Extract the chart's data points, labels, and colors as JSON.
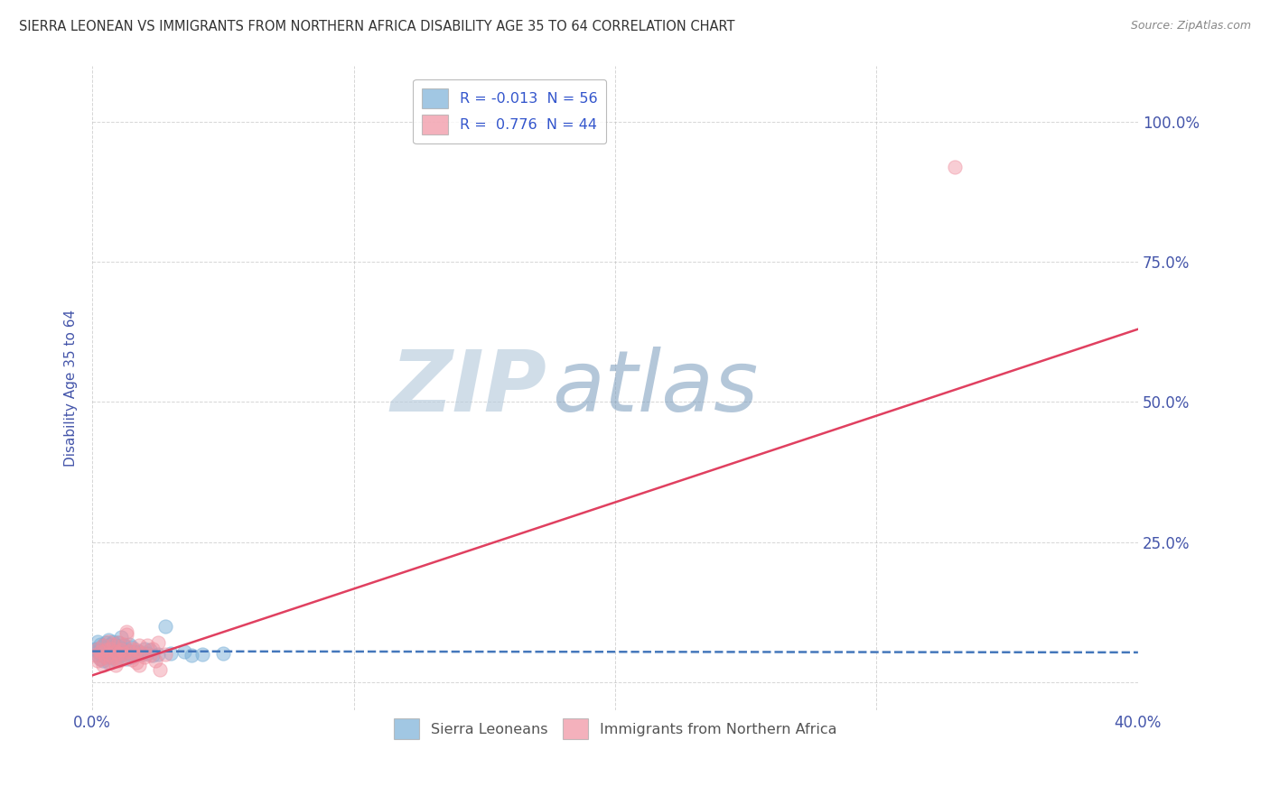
{
  "title": "SIERRA LEONEAN VS IMMIGRANTS FROM NORTHERN AFRICA DISABILITY AGE 35 TO 64 CORRELATION CHART",
  "source": "Source: ZipAtlas.com",
  "ylabel": "Disability Age 35 to 64",
  "xlim": [
    0.0,
    0.4
  ],
  "ylim": [
    -0.05,
    1.1
  ],
  "ytick_vals": [
    0.0,
    0.25,
    0.5,
    0.75,
    1.0
  ],
  "ytick_labels_right": [
    "",
    "25.0%",
    "50.0%",
    "75.0%",
    "100.0%"
  ],
  "xtick_vals": [
    0.0,
    0.1,
    0.2,
    0.3,
    0.4
  ],
  "xtick_labels": [
    "0.0%",
    "",
    "",
    "",
    "40.0%"
  ],
  "legend_label_blue": "R = -0.013  N = 56",
  "legend_label_pink": "R =  0.776  N = 44",
  "watermark_zip": "ZIP",
  "watermark_atlas": "atlas",
  "blue_scatter": [
    [
      0.001,
      0.06
    ],
    [
      0.001,
      0.058
    ],
    [
      0.002,
      0.072
    ],
    [
      0.002,
      0.055
    ],
    [
      0.002,
      0.048
    ],
    [
      0.003,
      0.068
    ],
    [
      0.003,
      0.05
    ],
    [
      0.003,
      0.042
    ],
    [
      0.004,
      0.065
    ],
    [
      0.004,
      0.055
    ],
    [
      0.004,
      0.038
    ],
    [
      0.005,
      0.07
    ],
    [
      0.005,
      0.058
    ],
    [
      0.005,
      0.045
    ],
    [
      0.006,
      0.075
    ],
    [
      0.006,
      0.06
    ],
    [
      0.006,
      0.05
    ],
    [
      0.006,
      0.035
    ],
    [
      0.007,
      0.068
    ],
    [
      0.007,
      0.055
    ],
    [
      0.007,
      0.045
    ],
    [
      0.008,
      0.072
    ],
    [
      0.008,
      0.058
    ],
    [
      0.008,
      0.048
    ],
    [
      0.009,
      0.065
    ],
    [
      0.009,
      0.052
    ],
    [
      0.009,
      0.04
    ],
    [
      0.01,
      0.07
    ],
    [
      0.01,
      0.058
    ],
    [
      0.01,
      0.045
    ],
    [
      0.011,
      0.08
    ],
    [
      0.011,
      0.06
    ],
    [
      0.011,
      0.048
    ],
    [
      0.012,
      0.065
    ],
    [
      0.012,
      0.055
    ],
    [
      0.013,
      0.058
    ],
    [
      0.013,
      0.042
    ],
    [
      0.014,
      0.068
    ],
    [
      0.014,
      0.052
    ],
    [
      0.015,
      0.062
    ],
    [
      0.015,
      0.045
    ],
    [
      0.016,
      0.055
    ],
    [
      0.017,
      0.048
    ],
    [
      0.018,
      0.055
    ],
    [
      0.019,
      0.05
    ],
    [
      0.02,
      0.06
    ],
    [
      0.021,
      0.052
    ],
    [
      0.022,
      0.058
    ],
    [
      0.023,
      0.048
    ],
    [
      0.025,
      0.05
    ],
    [
      0.028,
      0.1
    ],
    [
      0.03,
      0.052
    ],
    [
      0.035,
      0.055
    ],
    [
      0.038,
      0.048
    ],
    [
      0.042,
      0.05
    ],
    [
      0.05,
      0.052
    ]
  ],
  "pink_scatter": [
    [
      0.001,
      0.048
    ],
    [
      0.002,
      0.06
    ],
    [
      0.002,
      0.038
    ],
    [
      0.003,
      0.055
    ],
    [
      0.003,
      0.042
    ],
    [
      0.004,
      0.065
    ],
    [
      0.004,
      0.03
    ],
    [
      0.005,
      0.058
    ],
    [
      0.005,
      0.045
    ],
    [
      0.006,
      0.072
    ],
    [
      0.006,
      0.05
    ],
    [
      0.007,
      0.06
    ],
    [
      0.007,
      0.035
    ],
    [
      0.008,
      0.068
    ],
    [
      0.008,
      0.045
    ],
    [
      0.009,
      0.055
    ],
    [
      0.009,
      0.03
    ],
    [
      0.01,
      0.07
    ],
    [
      0.01,
      0.052
    ],
    [
      0.01,
      0.038
    ],
    [
      0.011,
      0.058
    ],
    [
      0.011,
      0.04
    ],
    [
      0.012,
      0.068
    ],
    [
      0.012,
      0.052
    ],
    [
      0.013,
      0.09
    ],
    [
      0.013,
      0.085
    ],
    [
      0.014,
      0.055
    ],
    [
      0.015,
      0.06
    ],
    [
      0.015,
      0.04
    ],
    [
      0.016,
      0.048
    ],
    [
      0.017,
      0.058
    ],
    [
      0.017,
      0.035
    ],
    [
      0.018,
      0.065
    ],
    [
      0.018,
      0.03
    ],
    [
      0.019,
      0.052
    ],
    [
      0.02,
      0.045
    ],
    [
      0.021,
      0.065
    ],
    [
      0.022,
      0.048
    ],
    [
      0.023,
      0.06
    ],
    [
      0.024,
      0.038
    ],
    [
      0.025,
      0.07
    ],
    [
      0.026,
      0.022
    ],
    [
      0.028,
      0.05
    ],
    [
      0.33,
      0.92
    ]
  ],
  "blue_line_x": [
    0.0,
    0.4
  ],
  "blue_line_y": [
    0.055,
    0.053
  ],
  "pink_line_x": [
    0.0,
    0.4
  ],
  "pink_line_y": [
    0.012,
    0.63
  ],
  "background_color": "#ffffff",
  "grid_color": "#bbbbbb",
  "scatter_blue_color": "#7ab0d8",
  "scatter_pink_color": "#f090a0",
  "line_blue_color": "#4477bb",
  "line_pink_color": "#e04060",
  "title_color": "#333333",
  "source_color": "#888888",
  "axis_label_color": "#4455aa",
  "tick_color": "#4455aa",
  "legend_label_color": "#3355cc"
}
